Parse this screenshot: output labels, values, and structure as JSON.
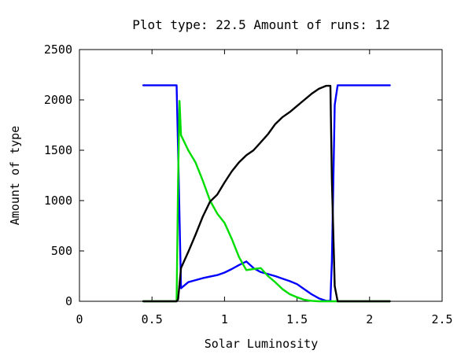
{
  "chart_data": {
    "type": "line",
    "title": "Plot type: 22.5 Amount of runs: 12",
    "xlabel": "Solar Luminosity",
    "ylabel": "Amount of type",
    "xlim": [
      0,
      2.5
    ],
    "ylim": [
      0,
      2500
    ],
    "x_ticks": [
      0,
      0.5,
      1,
      1.5,
      2,
      2.5
    ],
    "x_tick_labels": [
      "0",
      "0.5",
      "1",
      "1.5",
      "2",
      "2.5"
    ],
    "y_ticks": [
      0,
      500,
      1000,
      1500,
      2000,
      2500
    ],
    "y_tick_labels": [
      "0",
      "500",
      "1000",
      "1500",
      "2000",
      "2500"
    ],
    "grid": false,
    "legend": "none",
    "series": [
      {
        "color": "#0000ff",
        "x": [
          0.44,
          0.67,
          0.68,
          0.7,
          0.75,
          0.8,
          0.85,
          0.9,
          0.95,
          1.0,
          1.05,
          1.1,
          1.15,
          1.2,
          1.25,
          1.3,
          1.35,
          1.4,
          1.45,
          1.5,
          1.55,
          1.6,
          1.65,
          1.7,
          1.73,
          1.74,
          1.76,
          1.78,
          2.14
        ],
        "y": [
          2145,
          2145,
          1500,
          130,
          190,
          210,
          230,
          245,
          260,
          285,
          320,
          360,
          395,
          330,
          290,
          270,
          250,
          225,
          200,
          170,
          120,
          70,
          30,
          5,
          5,
          400,
          1950,
          2145,
          2145
        ]
      },
      {
        "color": "#00dd00",
        "x": [
          0.44,
          0.67,
          0.68,
          0.69,
          0.7,
          0.75,
          0.8,
          0.85,
          0.9,
          0.95,
          1.0,
          1.05,
          1.1,
          1.15,
          1.2,
          1.25,
          1.3,
          1.35,
          1.4,
          1.45,
          1.5,
          1.55,
          1.6,
          1.65,
          1.7,
          1.75,
          1.78,
          2.14
        ],
        "y": [
          0,
          0,
          1200,
          1990,
          1650,
          1500,
          1380,
          1200,
          1000,
          870,
          780,
          620,
          440,
          310,
          320,
          330,
          250,
          190,
          120,
          70,
          40,
          15,
          5,
          0,
          0,
          0,
          0,
          0
        ]
      },
      {
        "color": "#000000",
        "x": [
          0.44,
          0.67,
          0.68,
          0.7,
          0.75,
          0.8,
          0.85,
          0.9,
          0.95,
          1.0,
          1.05,
          1.1,
          1.15,
          1.2,
          1.25,
          1.3,
          1.35,
          1.4,
          1.45,
          1.5,
          1.55,
          1.6,
          1.65,
          1.7,
          1.73,
          1.74,
          1.76,
          1.78,
          2.14
        ],
        "y": [
          0,
          0,
          20,
          330,
          490,
          660,
          840,
          990,
          1060,
          1180,
          1290,
          1380,
          1450,
          1500,
          1580,
          1660,
          1760,
          1830,
          1880,
          1940,
          2000,
          2060,
          2110,
          2140,
          2140,
          1200,
          150,
          0,
          0
        ]
      }
    ]
  }
}
